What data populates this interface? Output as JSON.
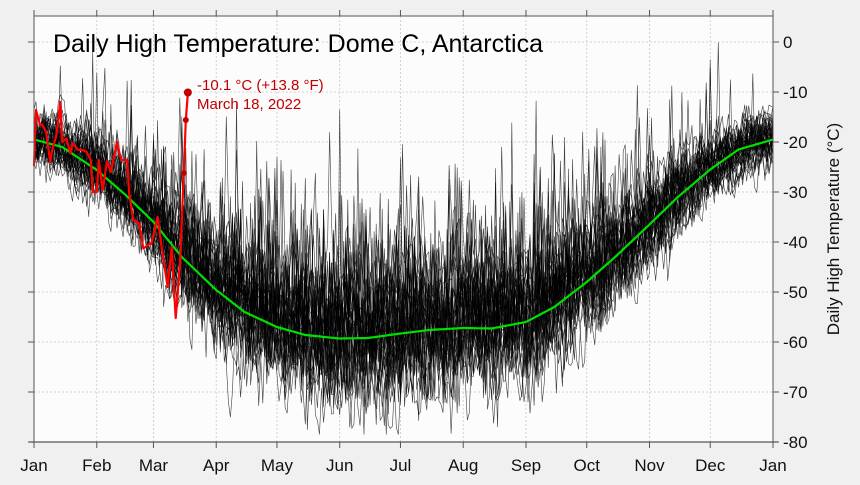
{
  "chart_data": {
    "type": "line",
    "title": "Daily High Temperature: Dome C, Antarctica",
    "xlabel": "",
    "ylabel": "Daily High Temperature (°C)",
    "ylim": [
      -80,
      5
    ],
    "y_axis_side": "right",
    "yticks": [
      "0",
      "-10",
      "-20",
      "-30",
      "-40",
      "-50",
      "-60",
      "-70",
      "-80"
    ],
    "xticks": [
      "Jan",
      "Feb",
      "Mar",
      "Apr",
      "May",
      "Jun",
      "Jul",
      "Aug",
      "Sep",
      "Oct",
      "Nov",
      "Dec",
      "Jan"
    ],
    "grid": true,
    "colors": {
      "historical": "#000000",
      "mean": "#00e000",
      "current_year": "#ff0000",
      "annotation": "#c00000"
    },
    "series": [
      {
        "role": "historical years (many daily traces)",
        "color": "#000000"
      },
      {
        "role": "mean",
        "color": "#00e000",
        "points": [
          [
            "01-01",
            -19.5
          ],
          [
            "01-15",
            -21.0
          ],
          [
            "02-01",
            -25.6
          ],
          [
            "02-15",
            -30.5
          ],
          [
            "03-01",
            -36.0
          ],
          [
            "03-15",
            -43.0
          ],
          [
            "04-01",
            -49.6
          ],
          [
            "04-15",
            -54.0
          ],
          [
            "05-01",
            -57.0
          ],
          [
            "05-15",
            -58.6
          ],
          [
            "06-01",
            -59.3
          ],
          [
            "06-15",
            -59.2
          ],
          [
            "07-01",
            -58.3
          ],
          [
            "07-15",
            -57.6
          ],
          [
            "08-01",
            -57.2
          ],
          [
            "08-15",
            -57.3
          ],
          [
            "09-01",
            -56.0
          ],
          [
            "09-15",
            -53.0
          ],
          [
            "10-01",
            -48.0
          ],
          [
            "10-15",
            -43.0
          ],
          [
            "11-01",
            -36.5
          ],
          [
            "11-15",
            -31.0
          ],
          [
            "12-01",
            -25.5
          ],
          [
            "12-15",
            -21.5
          ],
          [
            "12-31",
            -19.5
          ]
        ]
      },
      {
        "role": "2022",
        "color": "#ff0000",
        "points": [
          [
            "01-01",
            -24.8
          ],
          [
            "01-02",
            -13.6
          ],
          [
            "01-04",
            -16.6
          ],
          [
            "01-05",
            -16.5
          ],
          [
            "01-07",
            -18.0
          ],
          [
            "01-09",
            -24.0
          ],
          [
            "01-10",
            -21.6
          ],
          [
            "01-12",
            -18.7
          ],
          [
            "01-14",
            -12.0
          ],
          [
            "01-15",
            -20.0
          ],
          [
            "01-17",
            -19.3
          ],
          [
            "01-19",
            -22.3
          ],
          [
            "01-20",
            -20.3
          ],
          [
            "01-23",
            -21.6
          ],
          [
            "01-25",
            -21.6
          ],
          [
            "01-27",
            -22.0
          ],
          [
            "01-29",
            -23.6
          ],
          [
            "01-30",
            -30.0
          ],
          [
            "02-01",
            -30.0
          ],
          [
            "02-02",
            -23.6
          ],
          [
            "02-04",
            -29.6
          ],
          [
            "02-06",
            -23.9
          ],
          [
            "02-08",
            -26.0
          ],
          [
            "02-11",
            -20.0
          ],
          [
            "02-13",
            -23.6
          ],
          [
            "02-16",
            -23.6
          ],
          [
            "02-17",
            -30.3
          ],
          [
            "02-19",
            -35.6
          ],
          [
            "02-22",
            -36.3
          ],
          [
            "02-24",
            -41.3
          ],
          [
            "02-27",
            -40.4
          ],
          [
            "02-28",
            -40.4
          ],
          [
            "03-03",
            -35.0
          ],
          [
            "03-05",
            -41.0
          ],
          [
            "03-06",
            -43.6
          ],
          [
            "03-08",
            -49.0
          ],
          [
            "03-10",
            -41.0
          ],
          [
            "03-12",
            -55.2
          ],
          [
            "03-14",
            -45.0
          ],
          [
            "03-16",
            -26.2
          ],
          [
            "03-17",
            -15.6
          ],
          [
            "03-18",
            -10.1
          ]
        ],
        "marked_points": [
          "03-16",
          "03-17",
          "03-18"
        ]
      }
    ],
    "annotation": {
      "line1": "-10.1 °C (+13.8 °F)",
      "line2": "March 18, 2022"
    }
  }
}
